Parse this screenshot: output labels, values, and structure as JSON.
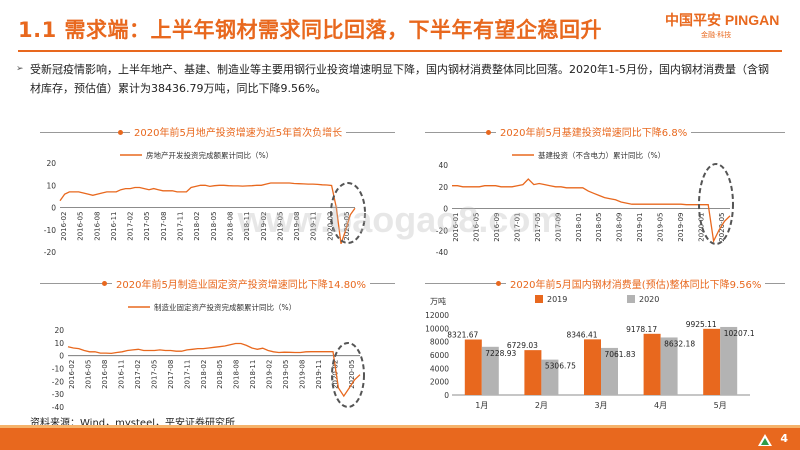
{
  "header": {
    "title": "1.1 需求端：上半年钢材需求同比回落，下半年有望企稳回升",
    "logo_main": "中国平安 PINGAN",
    "logo_sub": "金融·科技"
  },
  "summary": "受新冠疫情影响，上半年地产、基建、制造业等主要用钢行业投资增速明显下降，国内钢材消费整体同比回落。2020年1-5月份，国内钢材消费量（含钢材库存，预估值）累计为38436.79万吨，同比下降9.56%。",
  "charts": [
    {
      "title": "2020年前5月地产投资增速为近5年首次负增长",
      "legend": "房地产开发投资完成额累计同比（%）",
      "color": "#e8681e",
      "yticks": [
        "20",
        "10",
        "0",
        "-10",
        "-20"
      ],
      "xticks": [
        "2016-02",
        "2016-05",
        "2016-08",
        "2016-11",
        "2017-02",
        "2017-05",
        "2017-08",
        "2017-11",
        "2018-02",
        "2018-05",
        "2018-08",
        "2018-11",
        "2019-02",
        "2019-05",
        "2019-08",
        "2019-11",
        "2020-02",
        "2020-05"
      ]
    },
    {
      "title": "2020年前5月基建投资增速同比下降6.8%",
      "legend": "基建投资（不含电力）累计同比（%）",
      "color": "#e8681e",
      "yticks": [
        "40",
        "20",
        "0",
        "-20",
        "-40"
      ],
      "xticks": [
        "2016-01",
        "2016-05",
        "2016-09",
        "2017-01",
        "2017-05",
        "2017-09",
        "2018-01",
        "2018-05",
        "2018-09",
        "2019-01",
        "2019-05",
        "2019-09",
        "2020-01",
        "2020-05"
      ]
    },
    {
      "title": "2020年前5月制造业固定资产投资增速同比下降14.80%",
      "legend": "制造业固定资产投资完成额累计同比（%）",
      "color": "#e8681e",
      "yticks": [
        "20",
        "10",
        "0",
        "-10",
        "-20",
        "-30",
        "-40"
      ],
      "xticks": [
        "2016-02",
        "2016-05",
        "2016-08",
        "2016-11",
        "2017-02",
        "2017-05",
        "2017-08",
        "2017-11",
        "2018-02",
        "2018-05",
        "2018-08",
        "2018-11",
        "2019-02",
        "2019-05",
        "2019-08",
        "2019-11",
        "2020-02",
        "2020-05"
      ]
    },
    {
      "title": "2020年前5月国内钢材消费量(预估)整体同比下降9.56%",
      "unit": "万吨",
      "legend": [
        "2019",
        "2020"
      ],
      "yticks": [
        "12000",
        "10000",
        "8000",
        "6000",
        "4000",
        "2000",
        "0"
      ],
      "colors": [
        "#e8681e",
        "#b3b3b3"
      ]
    }
  ],
  "chart_data": [
    {
      "type": "line",
      "legend": "房地产开发投资完成额累计同比（%）",
      "ylim": [
        -20,
        20
      ],
      "values": [
        3,
        6,
        7,
        7,
        7,
        6.5,
        6,
        5.5,
        6,
        6.5,
        7,
        7,
        7,
        8,
        8.5,
        8.5,
        9,
        9,
        8.5,
        8,
        8.5,
        8,
        7.5,
        7.5,
        7.5,
        7,
        7,
        7,
        9,
        9.5,
        10,
        10,
        9.5,
        9.8,
        10,
        10,
        9.8,
        9.7,
        9.7,
        9.6,
        9.7,
        9.8,
        10,
        10,
        10.5,
        11,
        11,
        11,
        11,
        11,
        10.8,
        10.7,
        10.6,
        10.5,
        10.5,
        10.4,
        10.2,
        10.1,
        9.9,
        0,
        -16.3,
        -10.3,
        -3.3,
        -0.3
      ]
    },
    {
      "type": "line",
      "legend": "基建投资（不含电力）累计同比（%）",
      "ylim": [
        -40,
        40
      ],
      "values": [
        21,
        21,
        20,
        20,
        20,
        20,
        21,
        21,
        21,
        20,
        20,
        20,
        21,
        22,
        27,
        22,
        23,
        22,
        21,
        20,
        20,
        19,
        19,
        19,
        19,
        16,
        14,
        12,
        10,
        9,
        8,
        6,
        5,
        4,
        4,
        4,
        4,
        4,
        4,
        4,
        4,
        4,
        4,
        3.5,
        3.5,
        3.5,
        3.5,
        3.5,
        -30,
        -19.7,
        -11.8,
        -6.8
      ]
    },
    {
      "type": "line",
      "legend": "制造业固定资产投资完成额累计同比（%）",
      "ylim": [
        -40,
        20
      ],
      "values": [
        7,
        6,
        5.5,
        4,
        3,
        3,
        2,
        2,
        1.8,
        2.5,
        3,
        4,
        4.5,
        5,
        4,
        4,
        4,
        4.5,
        4,
        4,
        3.5,
        3.5,
        4.5,
        5,
        5.5,
        5.5,
        6,
        6.5,
        7,
        7.5,
        8.5,
        9.5,
        9.5,
        8,
        6,
        5,
        5.8,
        4,
        3,
        2.5,
        2.7,
        2.6,
        2.5,
        2.5,
        3,
        3.1,
        3.1,
        3.1,
        3.1,
        3.2,
        -25,
        -31.5,
        -25.2,
        -18.8,
        -14.8
      ]
    },
    {
      "type": "bar",
      "categories": [
        "1月",
        "2月",
        "3月",
        "4月",
        "5月"
      ],
      "series": [
        {
          "name": "2019",
          "values": [
            8321.67,
            6729.03,
            8346.41,
            9178.17,
            9925.11
          ]
        },
        {
          "name": "2020",
          "values": [
            7228.93,
            5306.75,
            7061.83,
            8632.18,
            10207.1
          ]
        }
      ],
      "ylim": [
        0,
        12000
      ]
    }
  ],
  "source": "资料来源：Wind，mysteel，平安证券研究所",
  "page_number": "4",
  "watermark": "www.baogao8.com"
}
